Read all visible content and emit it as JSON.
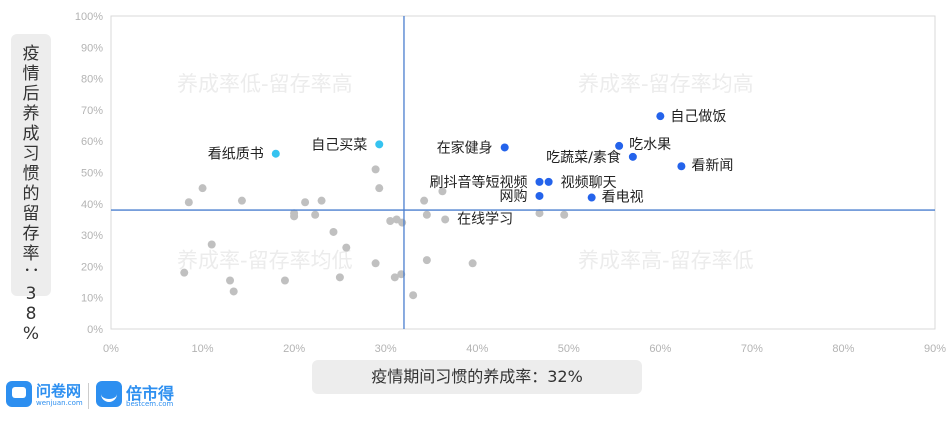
{
  "chart_data": {
    "type": "scatter",
    "quadrant_labels": {
      "top_left": "养成率低-留存率高",
      "top_right": "养成率-留存率均高",
      "bottom_left": "养成率-留存率均低",
      "bottom_right": "养成率高-留存率低"
    },
    "xlabel": "疫情期间习惯的养成率：32%",
    "ylabel": "疫情后养成习惯的留存率：38%",
    "x_threshold": 32,
    "y_threshold": 38,
    "xlim": [
      0,
      90
    ],
    "ylim": [
      0,
      100
    ],
    "x_ticks": [
      "0%",
      "10%",
      "20%",
      "30%",
      "40%",
      "50%",
      "60%",
      "70%",
      "80%",
      "90%"
    ],
    "y_ticks": [
      "0%",
      "10%",
      "20%",
      "30%",
      "40%",
      "50%",
      "60%",
      "70%",
      "80%",
      "90%",
      "100%"
    ],
    "colors": {
      "highlight": "#2463eb",
      "light_highlight": "#35c3f0",
      "other": "#c0c0c0",
      "axis": "#4a7fcf"
    },
    "labeled_points": [
      {
        "label": "自己做饭",
        "x": 60,
        "y": 68,
        "color": "highlight"
      },
      {
        "label": "吃水果",
        "x": 55.5,
        "y": 58.5,
        "color": "highlight"
      },
      {
        "label": "在家健身",
        "x": 43,
        "y": 58,
        "color": "highlight"
      },
      {
        "label": "吃蔬菜/素食",
        "x": 57,
        "y": 55,
        "color": "highlight"
      },
      {
        "label": "看新闻",
        "x": 62.3,
        "y": 52,
        "color": "highlight"
      },
      {
        "label": "刷抖音等短视频",
        "x": 46.8,
        "y": 47,
        "color": "highlight"
      },
      {
        "label": "视频聊天",
        "x": 47.8,
        "y": 47,
        "color": "highlight"
      },
      {
        "label": "网购",
        "x": 46.8,
        "y": 42.5,
        "color": "highlight"
      },
      {
        "label": "看电视",
        "x": 52.5,
        "y": 42,
        "color": "highlight"
      },
      {
        "label": "看纸质书",
        "x": 18,
        "y": 56,
        "color": "light_highlight"
      },
      {
        "label": "自己买菜",
        "x": 29.3,
        "y": 59,
        "color": "light_highlight"
      },
      {
        "label": "在线学习",
        "x": 36.5,
        "y": 35,
        "color": "other"
      }
    ],
    "other_points": [
      {
        "x": 8.5,
        "y": 40.5
      },
      {
        "x": 10,
        "y": 45
      },
      {
        "x": 14.3,
        "y": 41
      },
      {
        "x": 11,
        "y": 27
      },
      {
        "x": 8,
        "y": 18
      },
      {
        "x": 13,
        "y": 15.5
      },
      {
        "x": 13.4,
        "y": 12
      },
      {
        "x": 19,
        "y": 15.5
      },
      {
        "x": 20,
        "y": 37
      },
      {
        "x": 20,
        "y": 36
      },
      {
        "x": 21.2,
        "y": 40.5
      },
      {
        "x": 22.3,
        "y": 36.5
      },
      {
        "x": 23,
        "y": 41
      },
      {
        "x": 24.3,
        "y": 31
      },
      {
        "x": 25.7,
        "y": 26
      },
      {
        "x": 25,
        "y": 16.5
      },
      {
        "x": 28.9,
        "y": 51
      },
      {
        "x": 29.3,
        "y": 45
      },
      {
        "x": 30.5,
        "y": 34.5
      },
      {
        "x": 31.2,
        "y": 35
      },
      {
        "x": 31.8,
        "y": 34
      },
      {
        "x": 28.9,
        "y": 21
      },
      {
        "x": 31,
        "y": 16.5
      },
      {
        "x": 31.7,
        "y": 17.5
      },
      {
        "x": 33,
        "y": 10.8
      },
      {
        "x": 34.2,
        "y": 41
      },
      {
        "x": 34.5,
        "y": 36.5
      },
      {
        "x": 34.5,
        "y": 22
      },
      {
        "x": 36.2,
        "y": 44
      },
      {
        "x": 39.5,
        "y": 21
      },
      {
        "x": 46.8,
        "y": 37
      },
      {
        "x": 49.5,
        "y": 36.5
      }
    ]
  },
  "logos": {
    "left_name": "问卷网",
    "left_sub": "wenjuan.com",
    "right_name": "倍市得",
    "right_sub": "bestcem.com"
  }
}
